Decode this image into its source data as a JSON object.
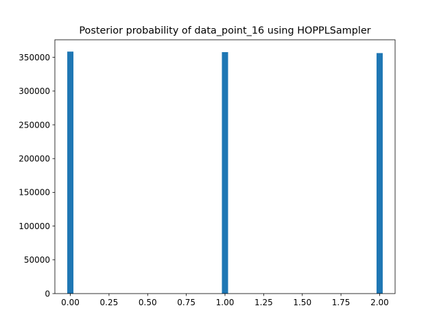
{
  "chart_data": {
    "type": "bar",
    "title": "Posterior probability of data_point_16 using HOPPLSampler",
    "xlabel": "",
    "ylabel": "",
    "xlim": [
      -0.1,
      2.1
    ],
    "ylim": [
      0,
      376000
    ],
    "x_ticks": [
      0.0,
      0.25,
      0.5,
      0.75,
      1.0,
      1.25,
      1.5,
      1.75,
      2.0
    ],
    "x_tick_labels": [
      "0.00",
      "0.25",
      "0.50",
      "0.75",
      "1.00",
      "1.25",
      "1.50",
      "1.75",
      "2.00"
    ],
    "y_ticks": [
      0,
      50000,
      100000,
      150000,
      200000,
      250000,
      300000,
      350000
    ],
    "y_tick_labels": [
      "0",
      "50000",
      "100000",
      "150000",
      "200000",
      "250000",
      "300000",
      "350000"
    ],
    "bin_width": 0.04,
    "bars": [
      {
        "x": 0.0,
        "value": 358500
      },
      {
        "x": 1.0,
        "value": 357700
      },
      {
        "x": 2.0,
        "value": 356300
      }
    ],
    "bar_color": "#1f77b4",
    "grid": false,
    "legend": "none"
  }
}
